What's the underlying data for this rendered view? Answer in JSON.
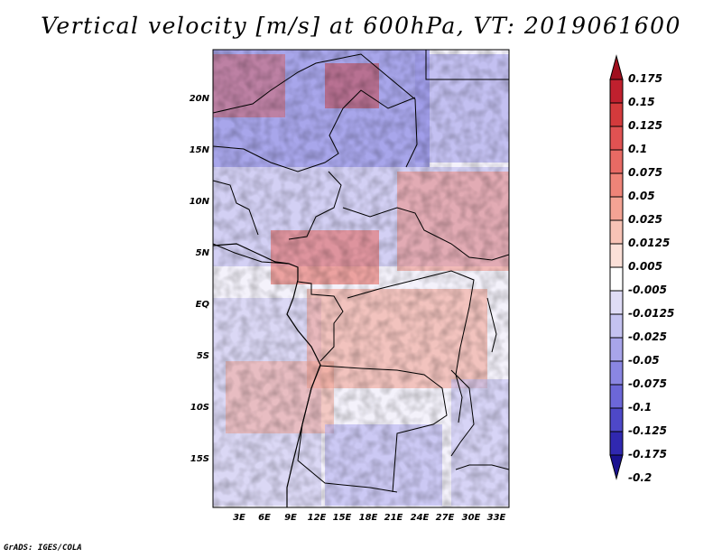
{
  "title": "Vertical velocity [m/s] at 600hPa, VT: 2019061600",
  "credit": "GrADS: IGES/COLA",
  "map": {
    "lat_ticks": [
      "20N",
      "15N",
      "10N",
      "5N",
      "EQ",
      "5S",
      "10S",
      "15S"
    ],
    "lon_ticks": [
      "3E",
      "6E",
      "9E",
      "12E",
      "15E",
      "18E",
      "21E",
      "24E",
      "27E",
      "30E",
      "33E"
    ]
  },
  "colorbar": {
    "levels": [
      "0.175",
      "0.15",
      "0.125",
      "0.1",
      "0.075",
      "0.05",
      "0.025",
      "0.0125",
      "0.005",
      "-0.005",
      "-0.0125",
      "-0.025",
      "-0.05",
      "-0.075",
      "-0.1",
      "-0.125",
      "-0.175",
      "-0.2"
    ],
    "colors": [
      "#a00f1e",
      "#c0202e",
      "#d43a3c",
      "#e05252",
      "#e86a64",
      "#ef8478",
      "#f4a394",
      "#f8c3b6",
      "#fbe0d8",
      "#ffffff",
      "#dfdcf6",
      "#c4c2f0",
      "#a8a5ea",
      "#8a86e2",
      "#6c67d8",
      "#4e48c8",
      "#3028b0",
      "#1a1290"
    ]
  }
}
